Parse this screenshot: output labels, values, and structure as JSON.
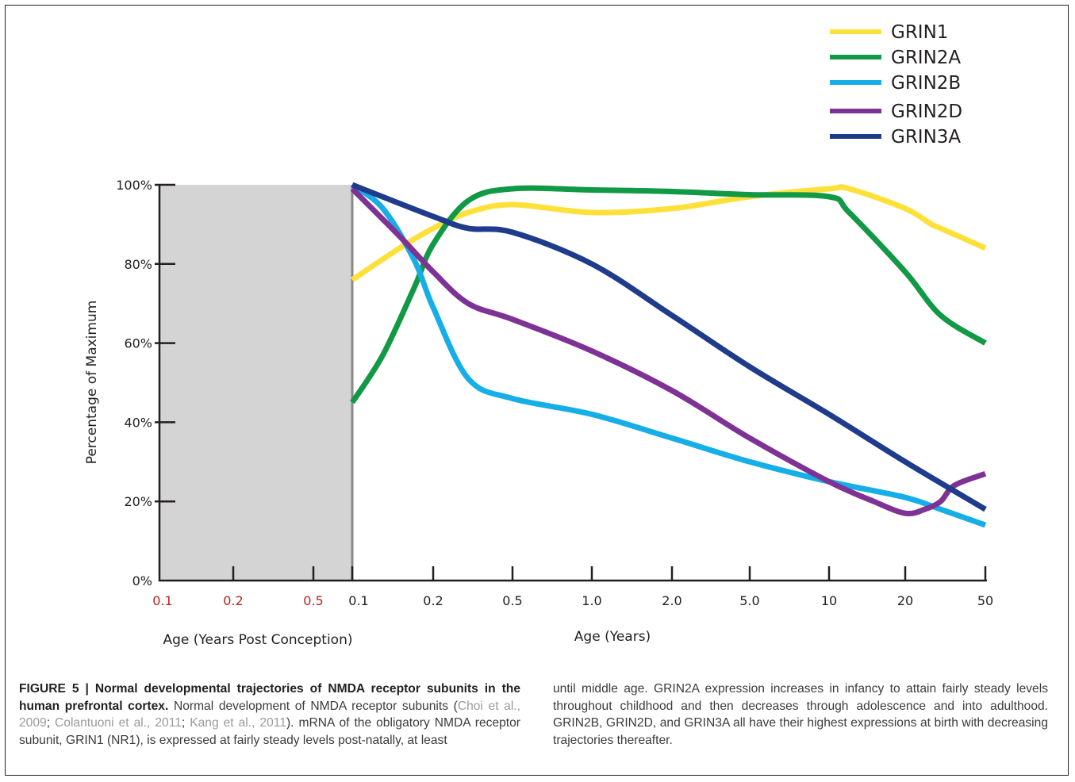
{
  "chart_data": {
    "type": "line",
    "ylabel": "Percentage of Maximum",
    "xlabel": "Age (Years)",
    "prenatal_xlabel": "Age (Years Post Conception)",
    "ylim": [
      0,
      100
    ],
    "y_ticks": [
      "0%",
      "20%",
      "40%",
      "60%",
      "80%",
      "100%"
    ],
    "prenatal_x_ticks": [
      "0.1",
      "0.2",
      "0.5"
    ],
    "x_ticks": [
      "0.1",
      "0.2",
      "0.5",
      "1.0",
      "2.0",
      "5.0",
      "10",
      "20",
      "50"
    ],
    "x_tick_values": [
      0.1,
      0.2,
      0.5,
      1.0,
      2.0,
      5.0,
      10,
      20,
      50
    ],
    "shaded_region": "prenatal period",
    "legend_position": "top-right",
    "grid": false,
    "series": [
      {
        "name": "GRIN1",
        "color": "#fde13a",
        "points": [
          [
            0.1,
            76
          ],
          [
            0.15,
            84
          ],
          [
            0.2,
            89
          ],
          [
            0.3,
            93
          ],
          [
            0.5,
            95
          ],
          [
            1.0,
            93
          ],
          [
            2.0,
            94
          ],
          [
            5.0,
            97
          ],
          [
            10,
            99
          ],
          [
            12,
            99
          ],
          [
            20,
            94
          ],
          [
            27,
            90
          ],
          [
            30,
            89
          ],
          [
            50,
            84
          ]
        ]
      },
      {
        "name": "GRIN2A",
        "color": "#129946",
        "points": [
          [
            0.1,
            45
          ],
          [
            0.13,
            57
          ],
          [
            0.17,
            74
          ],
          [
            0.2,
            85
          ],
          [
            0.3,
            96
          ],
          [
            0.5,
            99
          ],
          [
            1.0,
            98.7
          ],
          [
            2.0,
            98.3
          ],
          [
            5.0,
            97.5
          ],
          [
            10,
            97
          ],
          [
            12,
            93
          ],
          [
            20,
            78
          ],
          [
            30,
            67
          ],
          [
            50,
            60
          ]
        ]
      },
      {
        "name": "GRIN2B",
        "color": "#16aee7",
        "points": [
          [
            0.1,
            100
          ],
          [
            0.13,
            94
          ],
          [
            0.17,
            81
          ],
          [
            0.2,
            69
          ],
          [
            0.3,
            51
          ],
          [
            0.5,
            46
          ],
          [
            1.0,
            42
          ],
          [
            2.0,
            36
          ],
          [
            5.0,
            30
          ],
          [
            10,
            25
          ],
          [
            20,
            21
          ],
          [
            30,
            18
          ],
          [
            50,
            14
          ]
        ]
      },
      {
        "name": "GRIN2D",
        "color": "#7e3295",
        "points": [
          [
            0.1,
            99
          ],
          [
            0.15,
            87
          ],
          [
            0.2,
            78
          ],
          [
            0.3,
            70
          ],
          [
            0.5,
            66
          ],
          [
            1.0,
            58
          ],
          [
            2.0,
            48
          ],
          [
            5.0,
            36
          ],
          [
            10,
            25
          ],
          [
            15,
            20
          ],
          [
            20,
            17
          ],
          [
            25,
            18
          ],
          [
            30,
            20
          ],
          [
            35,
            24
          ],
          [
            50,
            27
          ]
        ]
      },
      {
        "name": "GRIN3A",
        "color": "#1f3b8c",
        "points": [
          [
            0.1,
            100
          ],
          [
            0.2,
            92
          ],
          [
            0.3,
            89
          ],
          [
            0.5,
            88
          ],
          [
            1.0,
            80
          ],
          [
            2.0,
            67
          ],
          [
            5.0,
            54
          ],
          [
            10,
            42
          ],
          [
            20,
            30
          ],
          [
            50,
            18
          ]
        ]
      }
    ]
  },
  "caption": {
    "head": "FIGURE 5 | Normal developmental trajectories of NMDA receptor subunits in the human prefrontal cortex.",
    "left_intro": "Normal development of NMDA receptor subunits (",
    "ref1": "Choi et al., 2009",
    "sep1": "; ",
    "ref2": "Colantuoni et al., 2011",
    "sep2": "; ",
    "ref3": "Kang et al., 2011",
    "left_rest": "). mRNA of the obligatory NMDA receptor subunit, GRIN1 (NR1), is expressed at fairly steady levels post-natally, at least",
    "right": "until middle age. GRIN2A expression increases in infancy to attain fairly steady levels throughout childhood and then decreases through adolescence and into adulthood. GRIN2B, GRIN2D, and GRIN3A all have their highest expressions at birth with decreasing trajectories thereafter."
  },
  "colors": {
    "prenatal_shade": "#d4d4d4",
    "prenatal_tick_label": "#b3261e",
    "axis": "#231f20"
  }
}
